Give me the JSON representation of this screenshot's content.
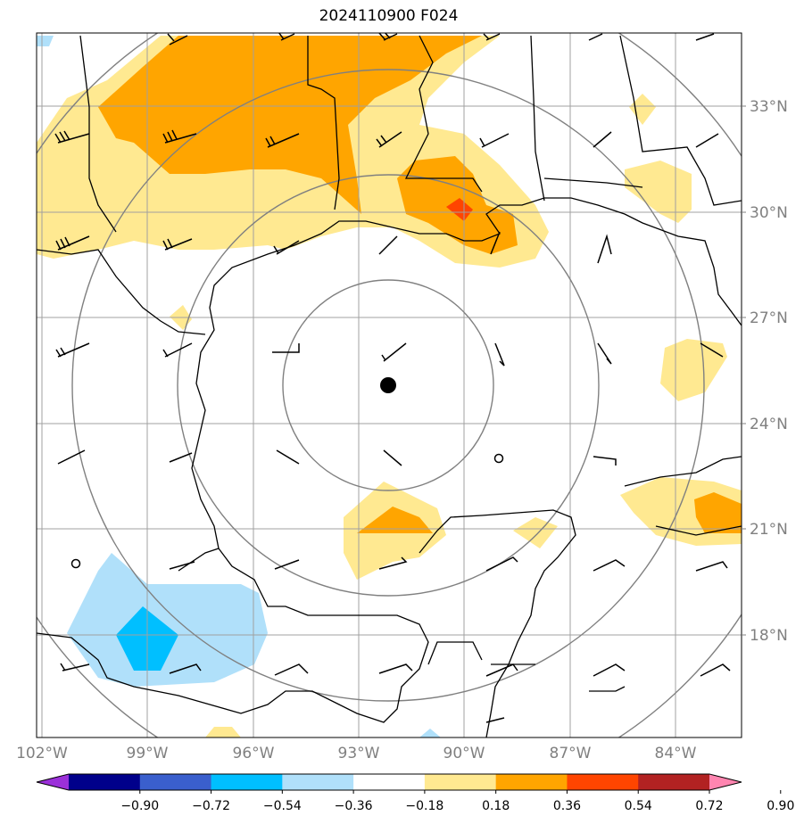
{
  "title": "2024110900 F024",
  "lat_labels": [
    "33°N",
    "30°N",
    "27°N",
    "24°N",
    "21°N",
    "18°N"
  ],
  "lon_labels": [
    "102°W",
    "99°W",
    "96°W",
    "93°W",
    "90°W",
    "87°W",
    "84°W"
  ],
  "colorbar": {
    "ticks": [
      "−0.90",
      "−0.72",
      "−0.54",
      "−0.36",
      "−0.18",
      "0.18",
      "0.36",
      "0.54",
      "0.72",
      "0.90"
    ],
    "colors": [
      "#9b30d9",
      "#00008b",
      "#3a5fcd",
      "#00bfff",
      "#b0e0fa",
      "#ffffff",
      "#ffe991",
      "#ffa500",
      "#ff4500",
      "#b22222",
      "#ff85b0"
    ]
  },
  "center_marker": "storm-center-dot",
  "range_rings": 4,
  "colors": {
    "pos1": "#ffe991",
    "pos2": "#ffa500",
    "pos3": "#ff4500",
    "neg1": "#b0e0fa",
    "neg2": "#00bfff",
    "grid": "#a0a0a0",
    "ring": "#808080",
    "coast": "#000000"
  }
}
